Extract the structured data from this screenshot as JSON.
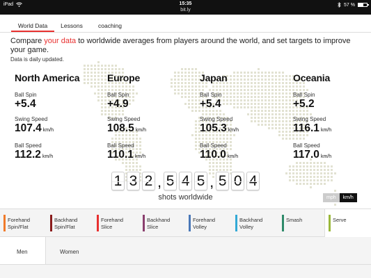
{
  "status": {
    "device": "iPad",
    "time": "15:35",
    "url": "bit.ly",
    "battery": "57 %",
    "battery_level": 0.57,
    "icons": [
      "wifi-icon",
      "bluetooth-icon",
      "battery-icon"
    ]
  },
  "tabs": [
    {
      "label": "World Data",
      "active": true
    },
    {
      "label": "Lessons",
      "active": false
    },
    {
      "label": "coaching",
      "active": false
    }
  ],
  "intro": {
    "before": "Compare ",
    "highlight": "your data",
    "after": " to worldwide averages from players around the world, and set targets to improve your game.",
    "note": "Data is daily updated."
  },
  "labels": {
    "spin": "Ball Spin",
    "swing": "Swing Speed",
    "speed": "Ball Speed",
    "unit": "km/h"
  },
  "regions": [
    {
      "name": "North America",
      "spin": "+5.4",
      "swing": "107.4",
      "speed": "112.2"
    },
    {
      "name": "Europe",
      "spin": "+4.9",
      "swing": "108.5",
      "speed": "110.1"
    },
    {
      "name": "Japan",
      "spin": "+5.4",
      "swing": "105.3",
      "speed": "110.0"
    },
    {
      "name": "Oceania",
      "spin": "+5.2",
      "swing": "116.1",
      "speed": "117.0"
    }
  ],
  "counter": {
    "value": "132,545,504",
    "caption": "shots worldwide"
  },
  "units": {
    "mph": "mph",
    "kmh": "km/h",
    "selected": "km/h"
  },
  "strokes": [
    {
      "line1": "Forehand",
      "line2": "Spin/Flat",
      "color": "#f07a2a"
    },
    {
      "line1": "Backhand",
      "line2": "Spin/Flat",
      "color": "#8a1c1c"
    },
    {
      "line1": "Forehand",
      "line2": "Slice",
      "color": "#e8302f"
    },
    {
      "line1": "Backhand",
      "line2": "Slice",
      "color": "#8a3f6e"
    },
    {
      "line1": "Forehand",
      "line2": "Volley",
      "color": "#4a78b8"
    },
    {
      "line1": "Backhand",
      "line2": "Volley",
      "color": "#33a9d6"
    },
    {
      "line1": "Smash",
      "line2": "",
      "color": "#2e8a6a"
    },
    {
      "line1": "Serve",
      "line2": "",
      "color": "#9ab83a",
      "active": true
    }
  ],
  "gender": [
    {
      "label": "Men",
      "active": true
    },
    {
      "label": "Women",
      "active": false
    }
  ],
  "colors": {
    "accent": "#e8302f",
    "map_dot": "#e2e2d2"
  }
}
